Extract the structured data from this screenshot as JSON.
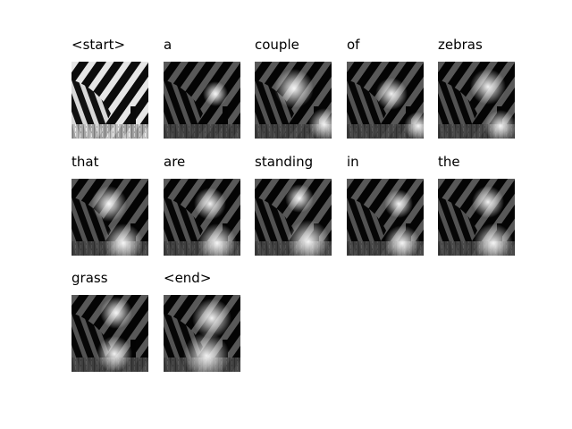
{
  "figure": {
    "tokens": [
      {
        "word": "<start>",
        "attention": "none"
      },
      {
        "word": "a"
      },
      {
        "word": "couple"
      },
      {
        "word": "of"
      },
      {
        "word": "zebras"
      },
      {
        "word": "that"
      },
      {
        "word": "are"
      },
      {
        "word": "standing"
      },
      {
        "word": "in"
      },
      {
        "word": "the"
      },
      {
        "word": "grass"
      },
      {
        "word": "<end>"
      }
    ]
  }
}
